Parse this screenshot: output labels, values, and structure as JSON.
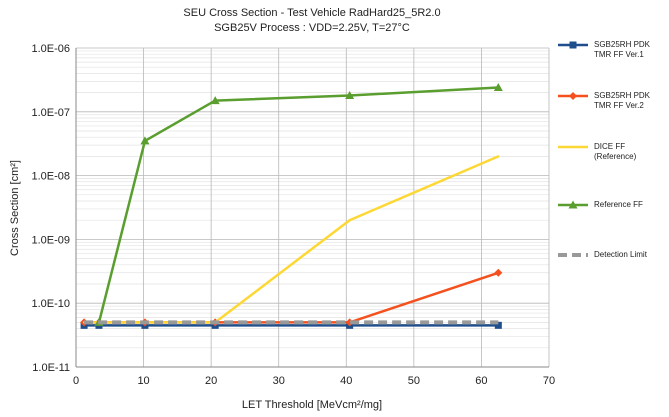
{
  "chart_data": {
    "type": "line",
    "title": "SEU Cross Section - Test Vehicle RadHard25_5R2.0",
    "subtitle": "SGB25V Process : VDD=2.25V, T=27°C",
    "x_label": "LET Threshold  [MeVcm²/mg]",
    "y_label": "Cross Section [cm²]",
    "xlim": [
      0,
      70
    ],
    "xticks": [
      0,
      10,
      20,
      30,
      40,
      50,
      60,
      70
    ],
    "ylim": [
      1e-11,
      1e-06
    ],
    "log_y": true,
    "grid": true,
    "yticks": [
      {
        "value": 1e-11,
        "label": "1.0E-11"
      },
      {
        "value": 1e-10,
        "label": "1.0E-10"
      },
      {
        "value": 1e-09,
        "label": "1.0E-09"
      },
      {
        "value": 1e-08,
        "label": "1.0E-08"
      },
      {
        "value": 1e-07,
        "label": "1.0E-07"
      },
      {
        "value": 1e-06,
        "label": "1.0E-06"
      }
    ],
    "legend": "right",
    "series": [
      {
        "name": "SGB25RH PDK TMR FF Ver.1",
        "color": "#1f4e8c",
        "marker": "square",
        "x": [
          1.2,
          3.4,
          10.2,
          20.6,
          40.5,
          62.5
        ],
        "values": [
          4.5e-11,
          4.5e-11,
          4.5e-11,
          4.5e-11,
          4.5e-11,
          4.5e-11
        ]
      },
      {
        "name": "SGB25RH PDK TMR FF Ver.2",
        "color": "#f4511e",
        "marker": "diamond",
        "x": [
          1.2,
          3.4,
          10.2,
          20.6,
          40.5,
          62.5
        ],
        "values": [
          5e-11,
          5e-11,
          5e-11,
          5e-11,
          5e-11,
          3e-10
        ]
      },
      {
        "name": "DICE FF (Reference)",
        "color": "#fdd835",
        "marker": "none",
        "x": [
          1.2,
          3.4,
          10.2,
          20.6,
          40.5,
          62.5
        ],
        "values": [
          5e-11,
          5e-11,
          5e-11,
          5e-11,
          2e-09,
          2e-08
        ]
      },
      {
        "name": "Reference FF",
        "color": "#5a9e2f",
        "marker": "triangle",
        "x": [
          3.4,
          10.2,
          20.6,
          40.5,
          62.5
        ],
        "values": [
          5e-11,
          3.5e-08,
          1.5e-07,
          1.8e-07,
          2.4e-07
        ]
      },
      {
        "name": "Detection Limit",
        "color": "#999999",
        "marker": "none",
        "dashed": true,
        "x": [
          1.2,
          62.5
        ],
        "values": [
          5e-11,
          5e-11
        ]
      }
    ]
  }
}
